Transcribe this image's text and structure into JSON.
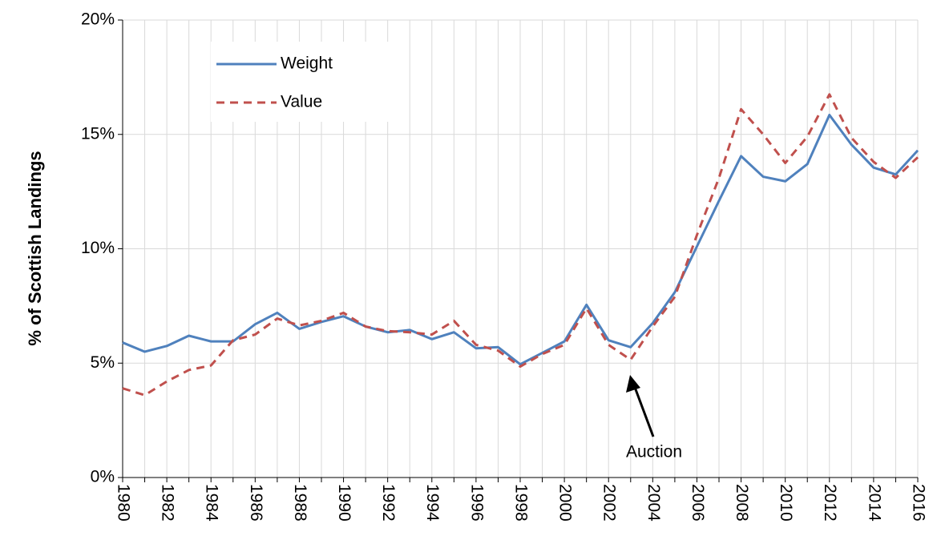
{
  "chart_data": {
    "type": "line",
    "y_label": "% of Scottish Landings",
    "x": [
      1980,
      1981,
      1982,
      1983,
      1984,
      1985,
      1986,
      1987,
      1988,
      1989,
      1990,
      1991,
      1992,
      1993,
      1994,
      1995,
      1996,
      1997,
      1998,
      1999,
      2000,
      2001,
      2002,
      2003,
      2004,
      2005,
      2006,
      2007,
      2008,
      2009,
      2010,
      2011,
      2012,
      2013,
      2014,
      2015,
      2016
    ],
    "series": [
      {
        "name": "Weight",
        "color": "#4f81bd",
        "dash": false,
        "values": [
          5.9,
          5.5,
          5.75,
          6.2,
          5.95,
          5.95,
          6.7,
          7.2,
          6.5,
          6.8,
          7.05,
          6.6,
          6.35,
          6.45,
          6.05,
          6.35,
          5.65,
          5.7,
          4.95,
          5.45,
          5.95,
          7.55,
          6.0,
          5.7,
          6.75,
          8.1,
          10.1,
          12.1,
          14.05,
          13.15,
          12.95,
          13.7,
          15.85,
          14.55,
          13.55,
          13.25,
          14.3
        ]
      },
      {
        "name": "Value",
        "color": "#c0504d",
        "dash": true,
        "values": [
          3.9,
          3.6,
          4.2,
          4.7,
          4.9,
          6.0,
          6.25,
          6.95,
          6.65,
          6.85,
          7.2,
          6.6,
          6.4,
          6.35,
          6.25,
          6.85,
          5.8,
          5.55,
          4.85,
          5.4,
          5.8,
          7.4,
          5.8,
          5.15,
          6.6,
          7.9,
          10.6,
          13.1,
          16.1,
          15.0,
          13.75,
          14.9,
          16.75,
          14.85,
          13.8,
          13.1,
          14.0
        ]
      }
    ],
    "xlim": [
      1980,
      2016
    ],
    "xticks": [
      1980,
      1982,
      1984,
      1986,
      1988,
      1990,
      1992,
      1994,
      1996,
      1998,
      2000,
      2002,
      2004,
      2006,
      2008,
      2010,
      2012,
      2014,
      2016
    ],
    "xminor_ticks": [
      1981,
      1983,
      1985,
      1987,
      1989,
      1991,
      1993,
      1995,
      1997,
      1999,
      2001,
      2003,
      2005,
      2007,
      2009,
      2011,
      2013,
      2015
    ],
    "ylim": [
      0,
      20
    ],
    "yticks": [
      {
        "value": 0,
        "label": "0%"
      },
      {
        "value": 5,
        "label": "5%"
      },
      {
        "value": 10,
        "label": "10%"
      },
      {
        "value": 15,
        "label": "15%"
      },
      {
        "value": 20,
        "label": "20%"
      }
    ],
    "grid": true,
    "legend": "upper-left",
    "annotations": [
      {
        "text": "Auction"
      }
    ]
  }
}
